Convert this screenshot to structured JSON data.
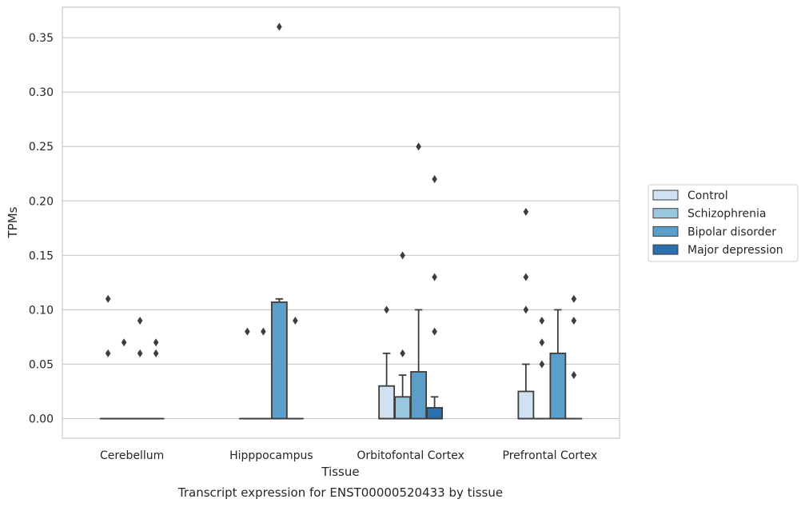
{
  "caption": "Transcript expression for ENST00000520433 by tissue",
  "chart_data": {
    "type": "boxplot",
    "xlabel": "Tissue",
    "ylabel": "TPMs",
    "ylim": [
      -0.018,
      0.378
    ],
    "yticks": [
      "0.00",
      "0.05",
      "0.10",
      "0.15",
      "0.20",
      "0.25",
      "0.30",
      "0.35"
    ],
    "grid": "horizontal",
    "legend_position": "right",
    "categories": [
      "Cerebellum",
      "Hipppocampus",
      "Orbitofontal Cortex",
      "Prefrontal Cortex"
    ],
    "series": [
      {
        "name": "Control",
        "color": "#d0e1f1",
        "boxes": [
          {
            "q1": 0,
            "median": 0,
            "q3": 0,
            "whisker_low": 0,
            "whisker_high": 0,
            "outliers": [
              0.11,
              0.06
            ]
          },
          {
            "q1": 0,
            "median": 0,
            "q3": 0,
            "whisker_low": 0,
            "whisker_high": 0,
            "outliers": [
              0.08
            ]
          },
          {
            "q1": 0,
            "median": 0,
            "q3": 0.03,
            "whisker_low": 0,
            "whisker_high": 0.06,
            "outliers": [
              0.1
            ]
          },
          {
            "q1": 0,
            "median": 0,
            "q3": 0.025,
            "whisker_low": 0,
            "whisker_high": 0.05,
            "outliers": [
              0.19,
              0.13,
              0.1
            ]
          }
        ]
      },
      {
        "name": "Schizophrenia",
        "color": "#9ac7e0",
        "boxes": [
          {
            "q1": 0,
            "median": 0,
            "q3": 0,
            "whisker_low": 0,
            "whisker_high": 0,
            "outliers": [
              0.07
            ]
          },
          {
            "q1": 0,
            "median": 0,
            "q3": 0,
            "whisker_low": 0,
            "whisker_high": 0,
            "outliers": [
              0.08
            ]
          },
          {
            "q1": 0,
            "median": 0,
            "q3": 0.02,
            "whisker_low": 0,
            "whisker_high": 0.04,
            "outliers": [
              0.15,
              0.06
            ]
          },
          {
            "q1": 0,
            "median": 0,
            "q3": 0,
            "whisker_low": 0,
            "whisker_high": 0,
            "outliers": [
              0.09,
              0.07,
              0.05
            ]
          }
        ]
      },
      {
        "name": "Bipolar disorder",
        "color": "#5a9ec9",
        "boxes": [
          {
            "q1": 0,
            "median": 0,
            "q3": 0,
            "whisker_low": 0,
            "whisker_high": 0,
            "outliers": [
              0.09,
              0.06
            ]
          },
          {
            "q1": 0,
            "median": 0,
            "q3": 0.107,
            "whisker_low": 0,
            "whisker_high": 0.11,
            "outliers": [
              0.36
            ]
          },
          {
            "q1": 0,
            "median": 0,
            "q3": 0.043,
            "whisker_low": 0,
            "whisker_high": 0.1,
            "outliers": [
              0.25
            ]
          },
          {
            "q1": 0,
            "median": 0,
            "q3": 0.06,
            "whisker_low": 0,
            "whisker_high": 0.1,
            "outliers": []
          }
        ]
      },
      {
        "name": "Major depression",
        "color": "#2c6fae",
        "boxes": [
          {
            "q1": 0,
            "median": 0,
            "q3": 0,
            "whisker_low": 0,
            "whisker_high": 0,
            "outliers": [
              0.07,
              0.06
            ]
          },
          {
            "q1": 0,
            "median": 0,
            "q3": 0,
            "whisker_low": 0,
            "whisker_high": 0,
            "outliers": [
              0.09
            ]
          },
          {
            "q1": 0,
            "median": 0,
            "q3": 0.01,
            "whisker_low": 0,
            "whisker_high": 0.02,
            "outliers": [
              0.22,
              0.13,
              0.08
            ]
          },
          {
            "q1": 0,
            "median": 0,
            "q3": 0,
            "whisker_low": 0,
            "whisker_high": 0,
            "outliers": [
              0.11,
              0.09,
              0.04
            ]
          }
        ]
      }
    ]
  }
}
